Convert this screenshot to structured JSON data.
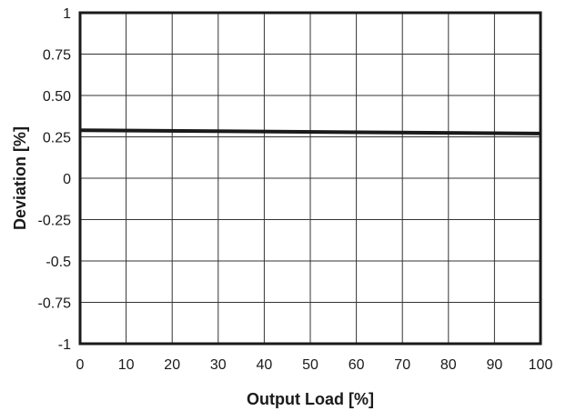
{
  "chart_data": {
    "type": "line",
    "title": "",
    "xlabel": "Output Load [%]",
    "ylabel": "Deviation [%]",
    "xlim": [
      0,
      100
    ],
    "ylim": [
      -1,
      1
    ],
    "grid": true,
    "x_ticks": [
      0,
      10,
      20,
      30,
      40,
      50,
      60,
      70,
      80,
      90,
      100
    ],
    "x_tick_labels": [
      "0",
      "10",
      "20",
      "30",
      "40",
      "50",
      "60",
      "70",
      "80",
      "90",
      "100"
    ],
    "y_ticks": [
      1,
      0.75,
      0.5,
      0.25,
      0,
      -0.25,
      -0.5,
      -0.75,
      -1
    ],
    "y_tick_labels": [
      "1",
      "0.75",
      "0.50",
      "0.25",
      "0",
      "-0.25",
      "-0.5",
      "-0.75",
      "-1"
    ],
    "series": [
      {
        "x": [
          0,
          100
        ],
        "y": [
          0.29,
          0.27
        ],
        "color": "#1a1a1a"
      }
    ]
  }
}
